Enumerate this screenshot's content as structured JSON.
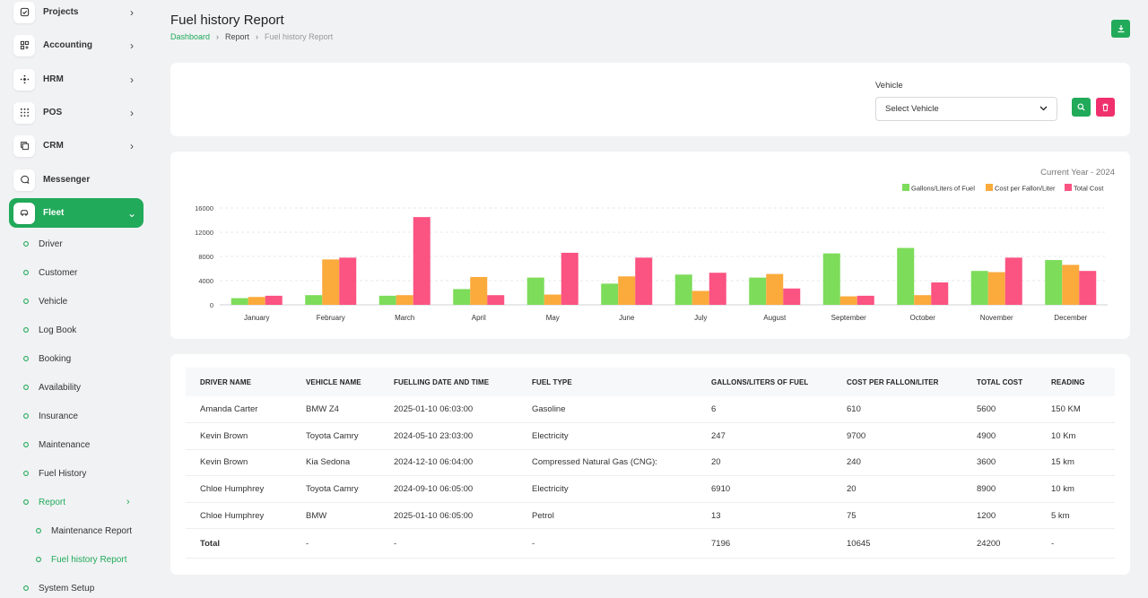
{
  "sidebar": {
    "main_items": [
      {
        "label": "Projects",
        "icon": "checkbox-icon"
      },
      {
        "label": "Accounting",
        "icon": "grid-icon"
      },
      {
        "label": "HRM",
        "icon": "hrm-icon"
      },
      {
        "label": "POS",
        "icon": "dots-grid-icon"
      },
      {
        "label": "CRM",
        "icon": "copy-icon"
      },
      {
        "label": "Messenger",
        "icon": "chat-icon"
      },
      {
        "label": "Fleet",
        "icon": "car-icon"
      }
    ],
    "fleet_items": [
      {
        "label": "Driver"
      },
      {
        "label": "Customer"
      },
      {
        "label": "Vehicle"
      },
      {
        "label": "Log Book"
      },
      {
        "label": "Booking"
      },
      {
        "label": "Availability"
      },
      {
        "label": "Insurance"
      },
      {
        "label": "Maintenance"
      },
      {
        "label": "Fuel History"
      },
      {
        "label": "Report"
      }
    ],
    "report_items": [
      {
        "label": "Maintenance Report"
      },
      {
        "label": "Fuel history Report"
      }
    ],
    "bottom_item": {
      "label": "System Setup"
    }
  },
  "header": {
    "title": "Fuel history Report",
    "breadcrumb": [
      "Dashboard",
      "Report",
      "Fuel history Report"
    ]
  },
  "filter": {
    "label": "Vehicle",
    "selected": "Select Vehicle"
  },
  "colors": {
    "accent": "#21aa5a",
    "danger": "#f0306d",
    "gallons": "#7ddc5a",
    "cost_per": "#fbaa3c",
    "total_cost": "#fb5382"
  },
  "chart_data": {
    "type": "bar",
    "title": "Current Year - 2024",
    "categories": [
      "January",
      "February",
      "March",
      "April",
      "May",
      "June",
      "July",
      "August",
      "September",
      "October",
      "November",
      "December"
    ],
    "series": [
      {
        "name": "Gallons/Liters of Fuel",
        "values": [
          1100,
          1600,
          1500,
          2600,
          4500,
          3500,
          5000,
          4500,
          8500,
          9400,
          5600,
          7400
        ]
      },
      {
        "name": "Cost per Fallon/Liter",
        "values": [
          1300,
          7500,
          1600,
          4600,
          1700,
          4700,
          2300,
          5100,
          1400,
          1600,
          5400,
          6600
        ]
      },
      {
        "name": "Total Cost",
        "values": [
          1500,
          7800,
          14500,
          1600,
          8600,
          7800,
          5300,
          2700,
          1500,
          3700,
          7800,
          5600
        ]
      }
    ],
    "yticks": [
      0,
      4000,
      8000,
      12000,
      16000
    ],
    "ylim": [
      0,
      16000
    ],
    "xlabel": "",
    "ylabel": "",
    "legend": "top-right"
  },
  "table": {
    "headers": [
      "DRIVER NAME",
      "VEHICLE NAME",
      "FUELLING DATE AND TIME",
      "FUEL TYPE",
      "GALLONS/LITERS OF FUEL",
      "COST PER FALLON/LITER",
      "TOTAL COST",
      "READING"
    ],
    "rows": [
      [
        "Amanda Carter",
        "BMW Z4",
        "2025-01-10 06:03:00",
        "Gasoline",
        "6",
        "610",
        "5600",
        "150 KM"
      ],
      [
        "Kevin Brown",
        "Toyota Camry",
        "2024-05-10 23:03:00",
        "Electricity",
        "247",
        "9700",
        "4900",
        "10 Km"
      ],
      [
        "Kevin Brown",
        "Kia Sedona",
        "2024-12-10 06:04:00",
        "Compressed Natural Gas (CNG):",
        "20",
        "240",
        "3600",
        "15 km"
      ],
      [
        "Chloe Humphrey",
        "Toyota Camry",
        "2024-09-10 06:05:00",
        "Electricity",
        "6910",
        "20",
        "8900",
        "10 km"
      ],
      [
        "Chloe Humphrey",
        "BMW",
        "2025-01-10 06:05:00",
        "Petrol",
        "13",
        "75",
        "1200",
        "5 km"
      ]
    ],
    "total": [
      "Total",
      "-",
      "-",
      "-",
      "7196",
      "10645",
      "24200",
      "-"
    ]
  }
}
